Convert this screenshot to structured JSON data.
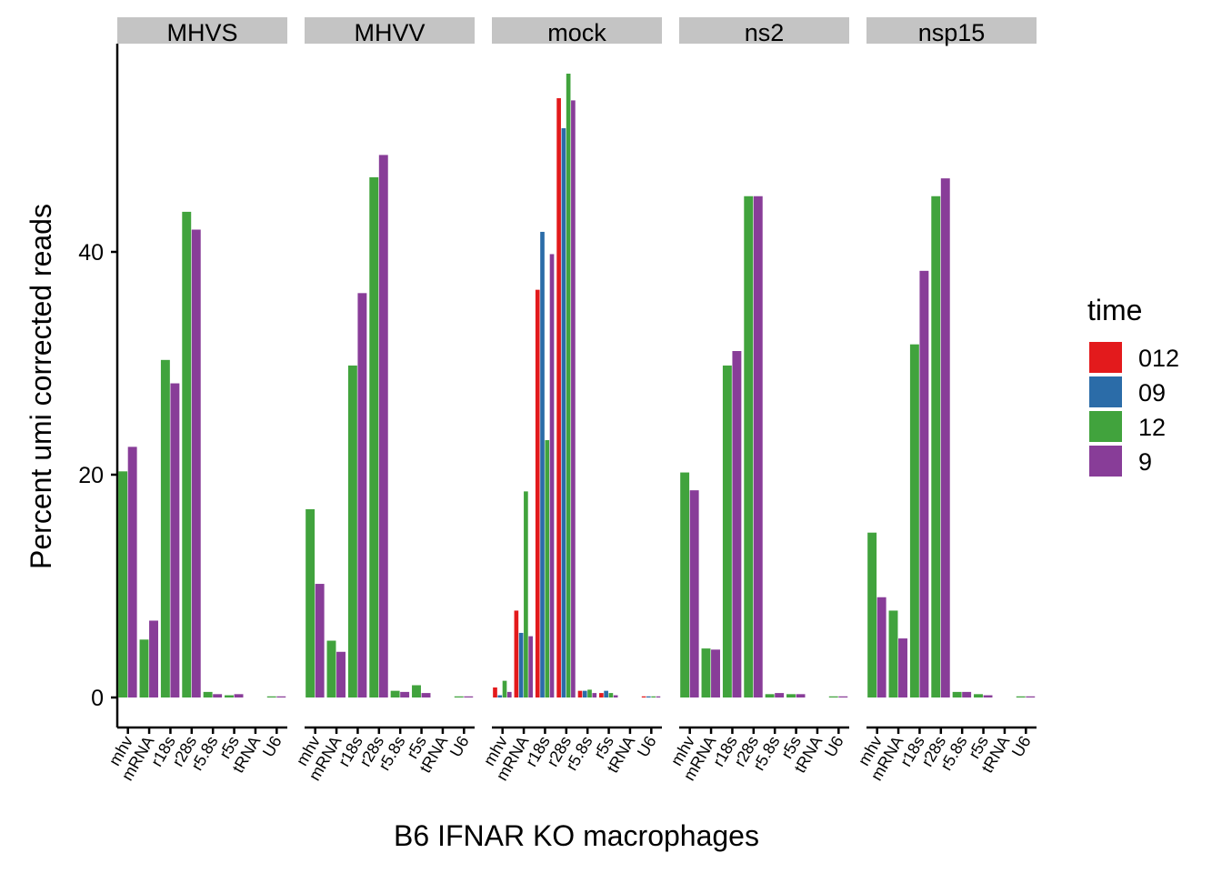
{
  "chart_data": {
    "type": "bar",
    "xlabel": "B6 IFNAR KO macrophages",
    "ylabel": "Percent umi corrected reads",
    "ylim": [
      -2.6,
      59
    ],
    "yticks": [
      0,
      20,
      40
    ],
    "grid": false,
    "legend_position": "right",
    "legend": {
      "title": "time",
      "entries": [
        {
          "name": "012",
          "color": "#e31a1c"
        },
        {
          "name": "09",
          "color": "#2b6ca8"
        },
        {
          "name": "12",
          "color": "#41a33d"
        },
        {
          "name": "9",
          "color": "#883d98"
        }
      ]
    },
    "categories": [
      "mhv",
      "mRNA",
      "r18s",
      "r28s",
      "r5.8s",
      "r5s",
      "tRNA",
      "U6"
    ],
    "panels": [
      {
        "name": "MHVS",
        "series": [
          {
            "name": "12",
            "values": [
              20.3,
              5.2,
              30.3,
              43.6,
              0.5,
              0.2,
              0.0,
              0.1
            ]
          },
          {
            "name": "9",
            "values": [
              22.5,
              6.9,
              28.2,
              42.0,
              0.3,
              0.3,
              0.0,
              0.1
            ]
          }
        ]
      },
      {
        "name": "MHVV",
        "series": [
          {
            "name": "12",
            "values": [
              16.9,
              5.1,
              29.8,
              46.7,
              0.6,
              1.1,
              0.0,
              0.1
            ]
          },
          {
            "name": "9",
            "values": [
              10.2,
              4.1,
              36.3,
              48.7,
              0.5,
              0.4,
              0.0,
              0.1
            ]
          }
        ]
      },
      {
        "name": "mock",
        "series": [
          {
            "name": "012",
            "values": [
              0.9,
              7.8,
              36.6,
              53.8,
              0.6,
              0.4,
              0.0,
              0.1
            ]
          },
          {
            "name": "09",
            "values": [
              0.2,
              5.8,
              41.8,
              51.1,
              0.6,
              0.6,
              0.0,
              0.1
            ]
          },
          {
            "name": "12",
            "values": [
              1.5,
              18.5,
              23.1,
              56.0,
              0.7,
              0.4,
              0.0,
              0.1
            ]
          },
          {
            "name": "9",
            "values": [
              0.5,
              5.5,
              39.8,
              53.6,
              0.4,
              0.2,
              0.0,
              0.1
            ]
          }
        ]
      },
      {
        "name": "ns2",
        "series": [
          {
            "name": "12",
            "values": [
              20.2,
              4.4,
              29.8,
              45.0,
              0.3,
              0.3,
              0.0,
              0.1
            ]
          },
          {
            "name": "9",
            "values": [
              18.6,
              4.3,
              31.1,
              45.0,
              0.4,
              0.3,
              0.0,
              0.1
            ]
          }
        ]
      },
      {
        "name": "nsp15",
        "series": [
          {
            "name": "12",
            "values": [
              14.8,
              7.8,
              31.7,
              45.0,
              0.5,
              0.3,
              0.0,
              0.1
            ]
          },
          {
            "name": "9",
            "values": [
              9.0,
              5.3,
              38.3,
              46.6,
              0.5,
              0.2,
              0.0,
              0.1
            ]
          }
        ]
      }
    ]
  }
}
